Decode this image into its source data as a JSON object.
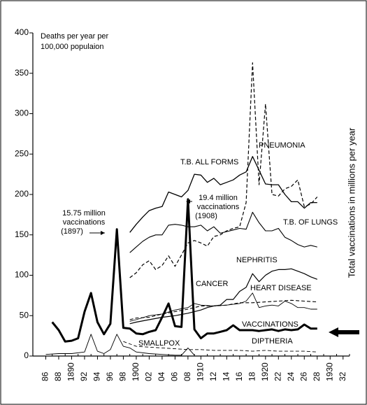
{
  "chart_data": {
    "type": "line",
    "y_label_lines": [
      "Deaths per year per",
      "100,000 populaion"
    ],
    "y2_label": "Total vaccinations in millions per year",
    "annotations": [
      {
        "lines": [
          "15.75 million",
          "vaccinations",
          "(1897)"
        ]
      },
      {
        "lines": [
          "19.4 million",
          "vaccinations",
          "(1908)"
        ]
      }
    ],
    "xlim": [
      1884,
      1933
    ],
    "xticks": [
      {
        "value": 1886,
        "label": "86"
      },
      {
        "value": 1888,
        "label": "88"
      },
      {
        "value": 1890,
        "label": "1890"
      },
      {
        "value": 1892,
        "label": "92"
      },
      {
        "value": 1894,
        "label": "94"
      },
      {
        "value": 1896,
        "label": "96"
      },
      {
        "value": 1898,
        "label": "98"
      },
      {
        "value": 1900,
        "label": "1900"
      },
      {
        "value": 1902,
        "label": "02"
      },
      {
        "value": 1904,
        "label": "04"
      },
      {
        "value": 1906,
        "label": "06"
      },
      {
        "value": 1908,
        "label": "08"
      },
      {
        "value": 1910,
        "label": "1910"
      },
      {
        "value": 1912,
        "label": "12"
      },
      {
        "value": 1914,
        "label": "14"
      },
      {
        "value": 1916,
        "label": "16"
      },
      {
        "value": 1918,
        "label": "18"
      },
      {
        "value": 1920,
        "label": "1920"
      },
      {
        "value": 1922,
        "label": "22"
      },
      {
        "value": 1924,
        "label": "24"
      },
      {
        "value": 1926,
        "label": "26"
      },
      {
        "value": 1928,
        "label": "28"
      },
      {
        "value": 1930,
        "label": "1930"
      },
      {
        "value": 1932,
        "label": "32"
      }
    ],
    "ylim": [
      0,
      400
    ],
    "yticks": [
      0,
      50,
      100,
      150,
      200,
      250,
      300,
      350,
      400
    ],
    "series": [
      {
        "name": "PNEUMONIA",
        "color": "#000000",
        "dashed": true,
        "width": 1.2,
        "x": [
          1899,
          1900,
          1901,
          1902,
          1903,
          1904,
          1905,
          1906,
          1907,
          1908,
          1909,
          1910,
          1911,
          1912,
          1913,
          1914,
          1915,
          1916,
          1917,
          1918,
          1919,
          1920,
          1921,
          1922,
          1923,
          1924,
          1925,
          1926,
          1927,
          1928
        ],
        "values": [
          97,
          103,
          113,
          118,
          107,
          112,
          124,
          111,
          125,
          140,
          143,
          140,
          136,
          148,
          150,
          155,
          158,
          160,
          190,
          363,
          212,
          312,
          200,
          198,
          207,
          210,
          218,
          185,
          188,
          197
        ]
      },
      {
        "name": "T.B. ALL FORMS",
        "color": "#000000",
        "dashed": false,
        "width": 1.3,
        "x": [
          1899,
          1900,
          1901,
          1902,
          1903,
          1904,
          1905,
          1906,
          1907,
          1908,
          1909,
          1910,
          1911,
          1912,
          1913,
          1914,
          1915,
          1916,
          1917,
          1918,
          1919,
          1920,
          1921,
          1922,
          1923,
          1924,
          1925,
          1926,
          1927,
          1928
        ],
        "values": [
          153,
          163,
          172,
          180,
          183,
          185,
          203,
          200,
          197,
          205,
          225,
          224,
          215,
          220,
          212,
          215,
          218,
          224,
          228,
          247,
          230,
          213,
          212,
          212,
          200,
          191,
          191,
          183,
          190,
          190
        ]
      },
      {
        "name": "T.B. OF LUNGS",
        "color": "#000000",
        "dashed": false,
        "width": 1.1,
        "x": [
          1899,
          1900,
          1901,
          1902,
          1903,
          1904,
          1905,
          1906,
          1907,
          1908,
          1909,
          1910,
          1911,
          1912,
          1913,
          1914,
          1915,
          1916,
          1917,
          1918,
          1919,
          1920,
          1921,
          1922,
          1923,
          1924,
          1925,
          1926,
          1927,
          1928
        ],
        "values": [
          128,
          135,
          142,
          147,
          150,
          150,
          162,
          163,
          162,
          160,
          160,
          162,
          155,
          160,
          152,
          154,
          156,
          158,
          157,
          178,
          165,
          155,
          155,
          158,
          147,
          143,
          138,
          135,
          137,
          135
        ]
      },
      {
        "name": "NEPHRITIS",
        "color": "#000000",
        "dashed": false,
        "width": 1.2,
        "x": [
          1899,
          1900,
          1902,
          1904,
          1906,
          1908,
          1910,
          1911,
          1912,
          1913,
          1914,
          1915,
          1916,
          1917,
          1918,
          1919,
          1920,
          1921,
          1922,
          1923,
          1924,
          1925,
          1926,
          1927,
          1928
        ],
        "values": [
          40,
          42,
          45,
          48,
          50,
          53,
          57,
          60,
          62,
          63,
          70,
          70,
          80,
          85,
          102,
          92,
          100,
          105,
          107,
          107,
          108,
          105,
          102,
          98,
          95
        ]
      },
      {
        "name": "CANCER",
        "color": "#000000",
        "dashed": true,
        "width": 1.1,
        "x": [
          1899,
          1900,
          1902,
          1904,
          1906,
          1908,
          1910,
          1912,
          1914,
          1916,
          1918,
          1920,
          1922,
          1924,
          1926,
          1928
        ],
        "values": [
          45,
          47,
          48,
          52,
          55,
          58,
          62,
          62,
          63,
          66,
          66,
          67,
          68,
          69,
          68,
          67
        ]
      },
      {
        "name": "HEART DISEASE",
        "color": "#000000",
        "dashed": false,
        "width": 0.9,
        "x": [
          1899,
          1900,
          1902,
          1904,
          1906,
          1908,
          1909,
          1910,
          1912,
          1914,
          1916,
          1917,
          1918,
          1919,
          1920,
          1921,
          1922,
          1923,
          1924,
          1925,
          1926,
          1927,
          1928
        ],
        "values": [
          43,
          45,
          50,
          52,
          57,
          60,
          65,
          63,
          62,
          63,
          65,
          68,
          78,
          60,
          62,
          63,
          62,
          68,
          65,
          60,
          60,
          58,
          58
        ]
      },
      {
        "name": "VACCINATIONS",
        "color": "#000000",
        "dashed": false,
        "width": 3,
        "x": [
          1887,
          1888,
          1889,
          1890,
          1891,
          1892,
          1893,
          1894,
          1895,
          1896,
          1897,
          1898,
          1899,
          1900,
          1901,
          1902,
          1903,
          1904,
          1905,
          1906,
          1907,
          1908,
          1909,
          1910,
          1911,
          1912,
          1913,
          1914,
          1915,
          1916,
          1917,
          1918,
          1919,
          1920,
          1921,
          1922,
          1923,
          1924,
          1925,
          1926,
          1927,
          1928
        ],
        "values": [
          42,
          32,
          18,
          19,
          22,
          55,
          78,
          42,
          27,
          40,
          157,
          35,
          34,
          28,
          27,
          30,
          32,
          48,
          65,
          37,
          36,
          194,
          33,
          22,
          28,
          28,
          30,
          32,
          38,
          32,
          32,
          32,
          31,
          32,
          33,
          31,
          33,
          32,
          33,
          39,
          34,
          34
        ]
      },
      {
        "name": "SMALLPOX",
        "color": "#000000",
        "dashed": false,
        "width": 0.9,
        "x": [
          1886,
          1888,
          1890,
          1892,
          1893,
          1894,
          1895,
          1896,
          1897,
          1898,
          1899,
          1900,
          1902,
          1904,
          1906,
          1907,
          1908,
          1909
        ],
        "values": [
          2,
          3,
          3,
          5,
          27,
          6,
          3,
          8,
          27,
          12,
          10,
          5,
          3,
          2,
          1,
          1,
          10,
          1
        ]
      },
      {
        "name": "DIPTHERIA",
        "color": "#000000",
        "dashed": true,
        "width": 0.9,
        "x": [
          1898,
          1900,
          1902,
          1904,
          1906,
          1908,
          1910,
          1912,
          1914,
          1916,
          1918,
          1920,
          1922,
          1924,
          1926,
          1928
        ],
        "values": [
          18,
          12,
          11,
          10,
          9,
          8,
          8,
          7,
          7,
          7,
          6,
          7,
          6,
          6,
          6,
          5
        ]
      }
    ]
  }
}
